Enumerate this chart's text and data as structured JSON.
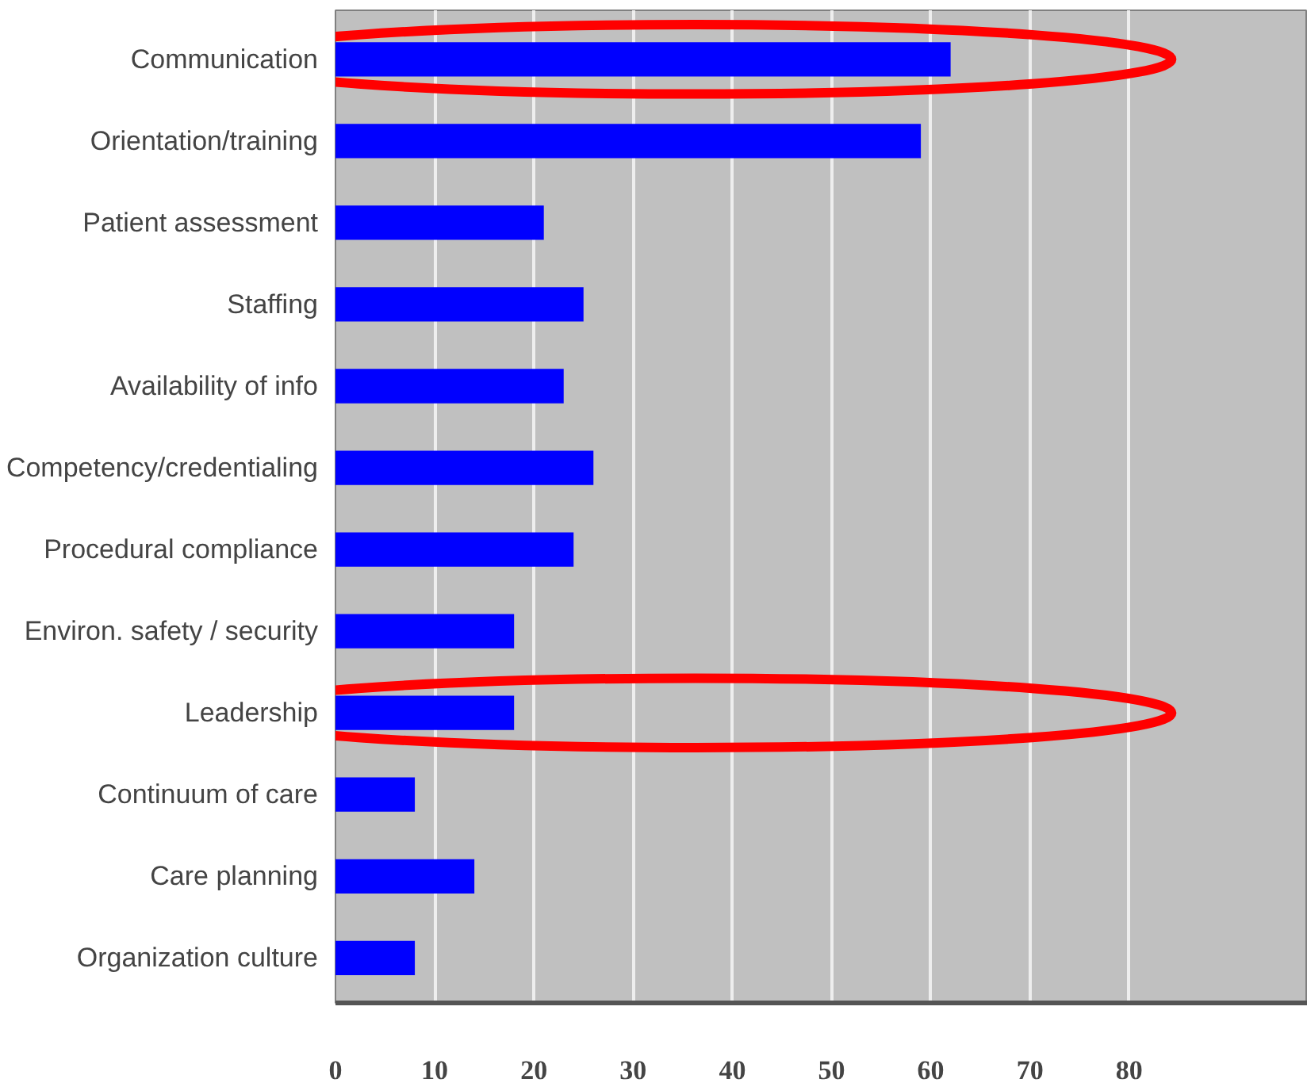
{
  "chart_data": {
    "type": "bar",
    "orientation": "horizontal",
    "categories": [
      "Communication",
      "Orientation/training",
      "Patient assessment",
      "Staffing",
      "Availability of info",
      "Competency/credentialing",
      "Procedural compliance",
      "Environ. safety / security",
      "Leadership",
      "Continuum of care",
      "Care planning",
      "Organization culture"
    ],
    "values": [
      62,
      59,
      21,
      25,
      23,
      26,
      24,
      18,
      18,
      8,
      14,
      8
    ],
    "color": "#0000ff",
    "xlim": [
      0,
      98
    ],
    "xticks": [
      0,
      10,
      20,
      30,
      40,
      50,
      60,
      70,
      80
    ],
    "grid": "x"
  }
}
